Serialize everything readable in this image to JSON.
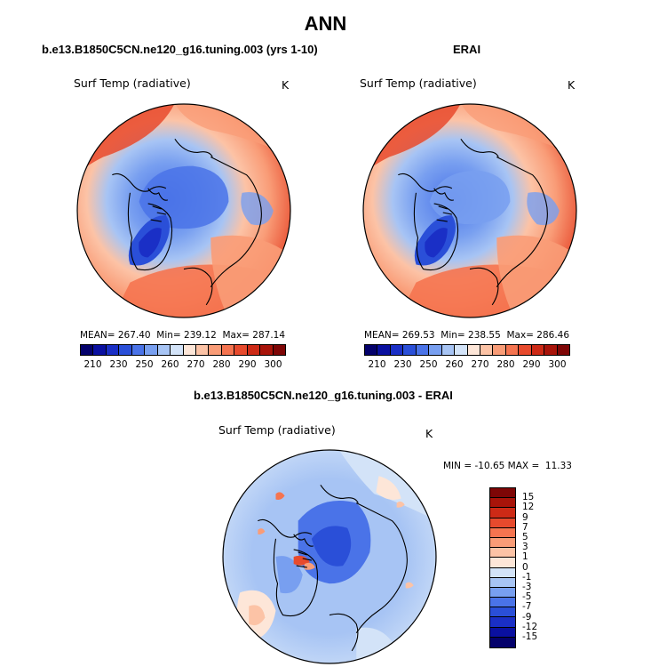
{
  "figure": {
    "title": "ANN"
  },
  "panels": [
    {
      "case_title": "b.e13.B1850C5CN.ne120_g16.tuning.003 (yrs 1-10)",
      "variable": "Surf Temp (radiative)",
      "units": "K",
      "stats": "MEAN= 267.40  Min= 239.12  Max= 287.14"
    },
    {
      "case_title": "ERAI",
      "variable": "Surf Temp (radiative)",
      "units": "K",
      "stats": "MEAN= 269.53  Min= 238.55  Max= 286.46"
    },
    {
      "case_title": "b.e13.B1850C5CN.ne120_g16.tuning.003 - ERAI",
      "variable": "Surf Temp (radiative)",
      "units": "K",
      "stats": "MIN = -10.65 MAX =  11.33"
    }
  ],
  "colorbar_abs": {
    "tick_labels": [
      "210",
      "230",
      "250",
      "260",
      "270",
      "280",
      "290",
      "300"
    ],
    "colors": [
      "#04016b",
      "#0a10a0",
      "#1a2fc6",
      "#2a4fd8",
      "#4a73e8",
      "#789ff0",
      "#a7c4f4",
      "#d3e3f8",
      "#fde6d8",
      "#fcc3a6",
      "#f99c77",
      "#f57450",
      "#e74a2d",
      "#cd2a16",
      "#a8140a",
      "#7e0606"
    ]
  },
  "colorbar_diff": {
    "tick_labels": [
      "15",
      "12",
      "9",
      "7",
      "5",
      "3",
      "1",
      "0",
      "-1",
      "-3",
      "-5",
      "-7",
      "-9",
      "-12",
      "-15"
    ],
    "colors": [
      "#7e0606",
      "#a8140a",
      "#cd2a16",
      "#e74a2d",
      "#f57450",
      "#f99c77",
      "#fcc3a6",
      "#fde6d8",
      "#d3e3f8",
      "#a7c4f4",
      "#789ff0",
      "#4a73e8",
      "#2a4fd8",
      "#1a2fc6",
      "#0a10a0",
      "#04016b"
    ]
  },
  "chart_data": [
    {
      "type": "heatmap",
      "title": "Surf Temp (radiative)",
      "subtitle": "b.e13.B1850C5CN.ne120_g16.tuning.003 (yrs 1-10)",
      "projection": "north polar stereographic",
      "units": "K",
      "mean": 267.4,
      "min": 239.12,
      "max": 287.14,
      "contour_levels": [
        210,
        230,
        250,
        260,
        270,
        280,
        290,
        300
      ]
    },
    {
      "type": "heatmap",
      "title": "Surf Temp (radiative)",
      "subtitle": "ERAI",
      "projection": "north polar stereographic",
      "units": "K",
      "mean": 269.53,
      "min": 238.55,
      "max": 286.46,
      "contour_levels": [
        210,
        230,
        250,
        260,
        270,
        280,
        290,
        300
      ]
    },
    {
      "type": "heatmap",
      "title": "Surf Temp (radiative)",
      "subtitle": "b.e13.B1850C5CN.ne120_g16.tuning.003 - ERAI",
      "projection": "north polar stereographic",
      "units": "K",
      "min": -10.65,
      "max": 11.33,
      "contour_levels": [
        -15,
        -12,
        -9,
        -7,
        -5,
        -3,
        -1,
        0,
        1,
        3,
        5,
        7,
        9,
        12,
        15
      ]
    }
  ]
}
